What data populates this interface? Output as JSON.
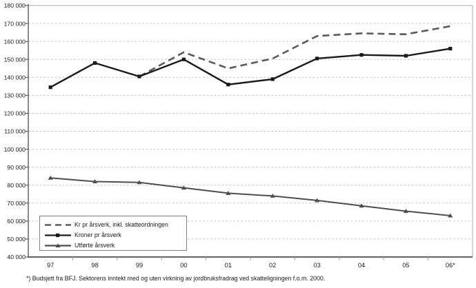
{
  "chart_data": {
    "type": "line",
    "title": "",
    "xlabel": "",
    "ylabel": "",
    "categories": [
      "97",
      "98",
      "99",
      "00",
      "01",
      "02",
      "03",
      "04",
      "05",
      "06*"
    ],
    "series": [
      {
        "name": "Kr pr årsverk, inkl. skatteordningen",
        "line_style": "dashed",
        "color": "#5a5a5a",
        "marker": "none",
        "values": [
          null,
          null,
          140500,
          154000,
          145000,
          150500,
          163000,
          164500,
          164000,
          168500
        ]
      },
      {
        "name": "Kroner pr årsverk",
        "line_style": "solid",
        "color": "#1a1a1a",
        "marker": "square",
        "values": [
          134500,
          148000,
          140500,
          150000,
          136000,
          139000,
          150500,
          152500,
          152000,
          156000
        ]
      },
      {
        "name": "Utførte årsverk",
        "line_style": "solid",
        "color": "#4d4d4d",
        "marker": "triangle",
        "values": [
          84000,
          82000,
          81500,
          78500,
          75500,
          74000,
          71500,
          68500,
          65500,
          63000
        ]
      }
    ],
    "ylim": [
      40000,
      180000
    ],
    "ytick_step": 10000,
    "ytick_labels": [
      "180 000",
      "170 000",
      "160 000",
      "150 000",
      "140 000",
      "130 000",
      "120 000",
      "110 000",
      "100 000",
      "90 000",
      "80 000",
      "70 000",
      "60 000",
      "50 000",
      "40 000"
    ],
    "grid": "horizontal-dashed",
    "legend_position": "inside-bottom-left",
    "footnote": "*) Budsjett fra BFJ. Sektorens inntekt med og uten virkning av jordbruksfradrag ved skatteligningen f.o.m. 2000.",
    "colors": {
      "grid": "#c9c9c9",
      "frame": "#a8a8a8",
      "axis": "#4d4d4d",
      "text": "#1a1a1a",
      "background": "#ffffff"
    }
  }
}
